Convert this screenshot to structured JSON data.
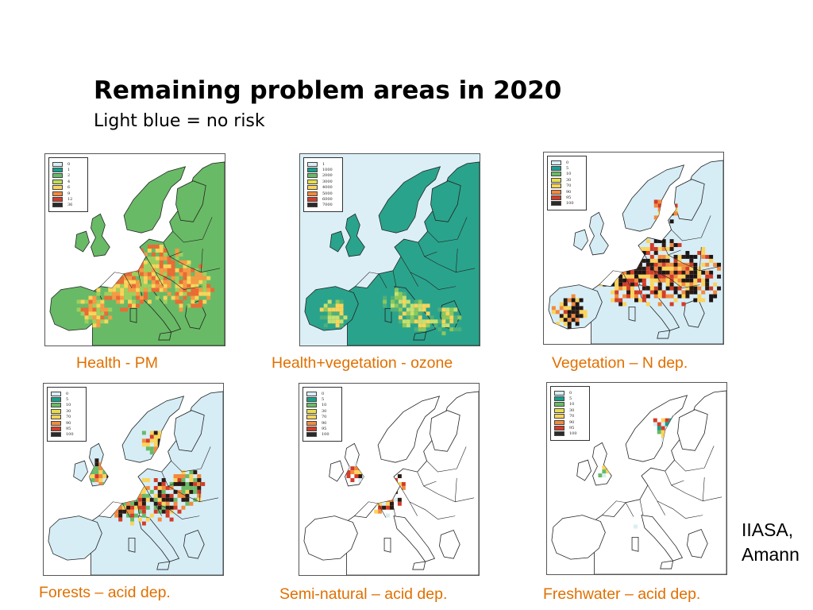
{
  "title": "Remaining problem areas in 2020",
  "subtitle": "Light blue = no risk",
  "credit_line1": "IIASA,",
  "credit_line2": "Amann",
  "maps": [
    {
      "caption": "Health - PM",
      "base_color": "#69ba66",
      "sea_color": "#ffffff",
      "hot_colors": [
        "#ec6a34",
        "#f79a44",
        "#fbd45a",
        "#9ecf5e"
      ],
      "legend": [
        {
          "label": "0",
          "color": "#d8eef6"
        },
        {
          "label": "1",
          "color": "#16a08e"
        },
        {
          "label": "2",
          "color": "#69ba66"
        },
        {
          "label": "4",
          "color": "#bedd57"
        },
        {
          "label": "6",
          "color": "#fbd45a"
        },
        {
          "label": "9",
          "color": "#f38a3c"
        },
        {
          "label": "12",
          "color": "#d33c28"
        },
        {
          "label": "36",
          "color": "#2a2a2a"
        }
      ]
    },
    {
      "caption": "Health+vegetation - ozone",
      "base_color": "#2aa38c",
      "sea_color": "#dceff7",
      "hot_colors": [
        "#8cc85c",
        "#fbd45a",
        "#c6e070",
        "#4fb07a"
      ],
      "legend": [
        {
          "label": "1",
          "color": "#d8eef6"
        },
        {
          "label": "1000",
          "color": "#16a08e"
        },
        {
          "label": "2000",
          "color": "#69ba66"
        },
        {
          "label": "3000",
          "color": "#e6df4a"
        },
        {
          "label": "4000",
          "color": "#fbd45a"
        },
        {
          "label": "5000",
          "color": "#f38a3c"
        },
        {
          "label": "6000",
          "color": "#d33c28"
        },
        {
          "label": "7000",
          "color": "#2a2a2a"
        }
      ]
    },
    {
      "caption": "Vegetation – N dep.",
      "base_color": "#d6edf6",
      "sea_color": "#ffffff",
      "hot_colors": [
        "#1c1414",
        "#2b1a14",
        "#d33c28",
        "#fbd45a",
        "#f38a3c"
      ],
      "legend": [
        {
          "label": "0",
          "color": "#d8eef6"
        },
        {
          "label": "5",
          "color": "#16a08e"
        },
        {
          "label": "10",
          "color": "#69ba66"
        },
        {
          "label": "30",
          "color": "#e6df4a"
        },
        {
          "label": "70",
          "color": "#fbd45a"
        },
        {
          "label": "90",
          "color": "#f38a3c"
        },
        {
          "label": "95",
          "color": "#d33c28"
        },
        {
          "label": "100",
          "color": "#2a2a2a"
        }
      ]
    },
    {
      "caption": "Forests – acid dep.",
      "base_color": "#d6edf6",
      "sea_color": "#ffffff",
      "hot_colors": [
        "#d33c28",
        "#fbd45a",
        "#f38a3c",
        "#2b1a14",
        "#69ba66"
      ],
      "legend": [
        {
          "label": "0",
          "color": "#d8eef6"
        },
        {
          "label": "5",
          "color": "#16a08e"
        },
        {
          "label": "10",
          "color": "#69ba66"
        },
        {
          "label": "30",
          "color": "#e6df4a"
        },
        {
          "label": "70",
          "color": "#fbd45a"
        },
        {
          "label": "90",
          "color": "#f38a3c"
        },
        {
          "label": "95",
          "color": "#d33c28"
        },
        {
          "label": "100",
          "color": "#2a2a2a"
        }
      ]
    },
    {
      "caption": "Semi-natural – acid dep.",
      "base_color": "#ffffff",
      "sea_color": "#ffffff",
      "hot_colors": [
        "#d33c28",
        "#fbd45a",
        "#2b1a14",
        "#f38a3c",
        "#d8eef6"
      ],
      "legend": [
        {
          "label": "0",
          "color": "#d8eef6"
        },
        {
          "label": "5",
          "color": "#16a08e"
        },
        {
          "label": "10",
          "color": "#69ba66"
        },
        {
          "label": "30",
          "color": "#e6df4a"
        },
        {
          "label": "70",
          "color": "#fbd45a"
        },
        {
          "label": "90",
          "color": "#f38a3c"
        },
        {
          "label": "95",
          "color": "#d33c28"
        },
        {
          "label": "100",
          "color": "#2a2a2a"
        }
      ]
    },
    {
      "caption": "Freshwater – acid dep.",
      "base_color": "#ffffff",
      "sea_color": "#ffffff",
      "hot_colors": [
        "#d8eef6",
        "#69ba66",
        "#fbd45a",
        "#d33c28",
        "#16a08e"
      ],
      "legend": [
        {
          "label": "0",
          "color": "#d8eef6"
        },
        {
          "label": "5",
          "color": "#16a08e"
        },
        {
          "label": "10",
          "color": "#69ba66"
        },
        {
          "label": "30",
          "color": "#e6df4a"
        },
        {
          "label": "70",
          "color": "#fbd45a"
        },
        {
          "label": "90",
          "color": "#f38a3c"
        },
        {
          "label": "95",
          "color": "#d33c28"
        },
        {
          "label": "100",
          "color": "#2a2a2a"
        }
      ]
    }
  ]
}
